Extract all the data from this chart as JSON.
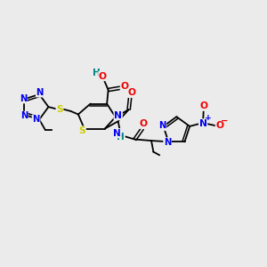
{
  "bg_color": "#ebebeb",
  "atom_colors": {
    "C": "#000000",
    "N": "#0000ee",
    "O": "#ee0000",
    "S": "#cccc00",
    "H": "#008080"
  },
  "figsize": [
    3.0,
    3.0
  ],
  "dpi": 100,
  "xlim": [
    0,
    10
  ],
  "ylim": [
    0,
    10
  ],
  "lw": 1.3,
  "fs": 7.2
}
